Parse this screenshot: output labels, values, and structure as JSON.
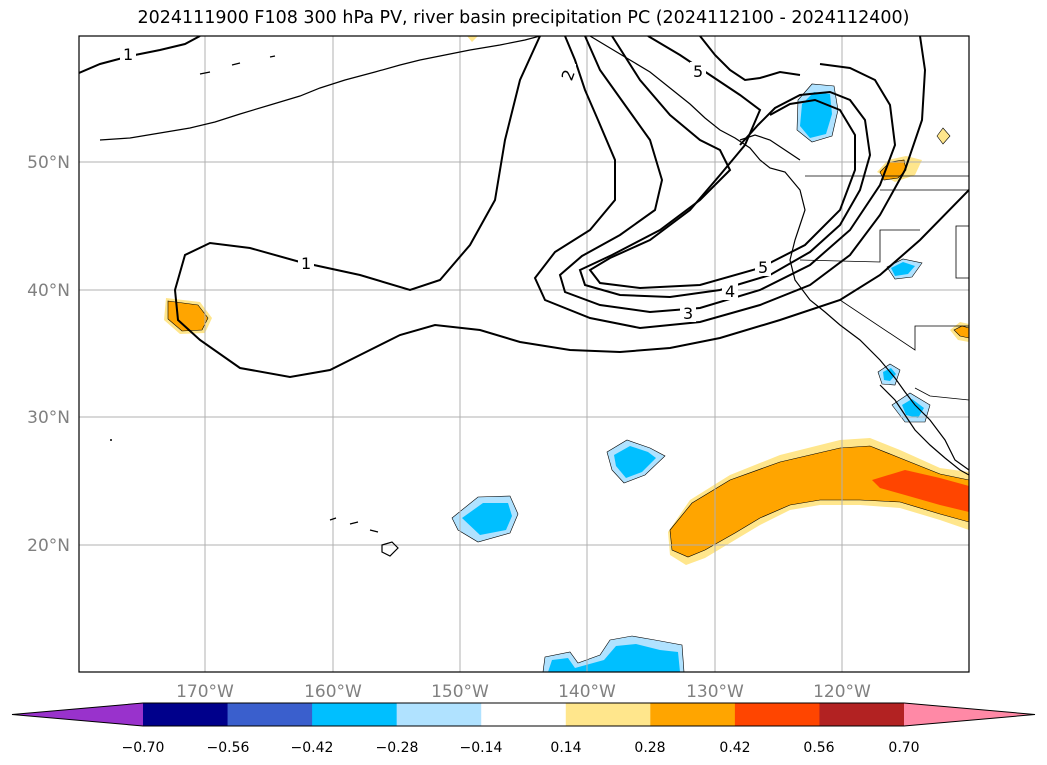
{
  "title": "2024111900 F108 300 hPa PV, river basin precipitation PC (2024112100 - 2024112400)",
  "lat_labels": [
    "50°N",
    "40°N",
    "30°N",
    "20°N"
  ],
  "lon_labels": [
    "170°W",
    "160°W",
    "150°W",
    "140°W",
    "130°W",
    "120°W"
  ],
  "contour_labels": [
    "1",
    "2",
    "5",
    "1",
    "5",
    "4",
    "3"
  ],
  "colorbar": {
    "ticks": [
      "−0.70",
      "−0.56",
      "−0.42",
      "−0.28",
      "−0.14",
      "0.14",
      "0.28",
      "0.42",
      "0.56",
      "0.70"
    ],
    "colors": [
      "#9932CC",
      "#00008B",
      "#3A5FCD",
      "#00BFFF",
      "#B0E2FF",
      "#FFFFFF",
      "#FFE68C",
      "#FFA500",
      "#FF4500",
      "#B22222",
      "#FF89A6"
    ]
  }
}
